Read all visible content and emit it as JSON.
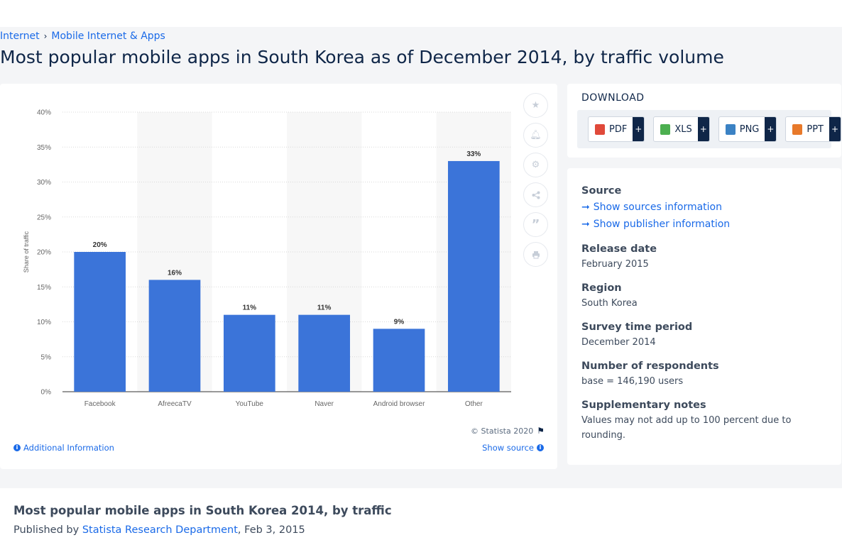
{
  "breadcrumb": {
    "item1": "Internet",
    "separator": "›",
    "item2": "Mobile Internet & Apps"
  },
  "page_title": "Most popular mobile apps in South Korea as of December 2014, by traffic volume",
  "chart_tools": [
    "star-icon",
    "bell-icon",
    "gear-icon",
    "share-icon",
    "quote-icon",
    "print-icon"
  ],
  "chart_footer": {
    "copyright": "© Statista 2020",
    "additional_info": "Additional Information",
    "show_source": "Show source"
  },
  "chart_data": {
    "type": "bar",
    "categories": [
      "Facebook",
      "AfreecaTV",
      "YouTube",
      "Naver",
      "Android browser",
      "Other"
    ],
    "values": [
      20,
      16,
      11,
      11,
      9,
      33
    ],
    "data_labels": [
      "20%",
      "16%",
      "11%",
      "11%",
      "9%",
      "33%"
    ],
    "ylabel": "Share of traffic",
    "xlabel": "",
    "ylim": [
      0,
      40
    ],
    "yticks": [
      "0%",
      "5%",
      "10%",
      "15%",
      "20%",
      "25%",
      "30%",
      "35%",
      "40%"
    ],
    "bar_color": "#3b74d9",
    "grid": true
  },
  "download": {
    "title": "DOWNLOAD",
    "buttons": [
      {
        "label": "PDF",
        "icon": "pdf-icon",
        "color": "#e0493a"
      },
      {
        "label": "XLS",
        "icon": "xls-icon",
        "color": "#4caf50"
      },
      {
        "label": "PNG",
        "icon": "png-icon",
        "color": "#3b82c4"
      },
      {
        "label": "PPT",
        "icon": "ppt-icon",
        "color": "#e8792a"
      }
    ],
    "plus": "+"
  },
  "meta": {
    "source_head": "Source",
    "show_sources": "Show sources information",
    "show_publisher": "Show publisher information",
    "release_head": "Release date",
    "release_val": "February 2015",
    "region_head": "Region",
    "region_val": "South Korea",
    "survey_head": "Survey time period",
    "survey_val": "December 2014",
    "respondents_head": "Number of respondents",
    "respondents_val": "base = 146,190 users",
    "notes_head": "Supplementary notes",
    "notes_val": "Values may not add up to 100 percent due to rounding."
  },
  "bottom": {
    "title": "Most popular mobile apps in South Korea 2014, by traffic",
    "published_by": "Published by",
    "publisher": "Statista Research Department",
    "date": ", Feb 3, 2015"
  }
}
